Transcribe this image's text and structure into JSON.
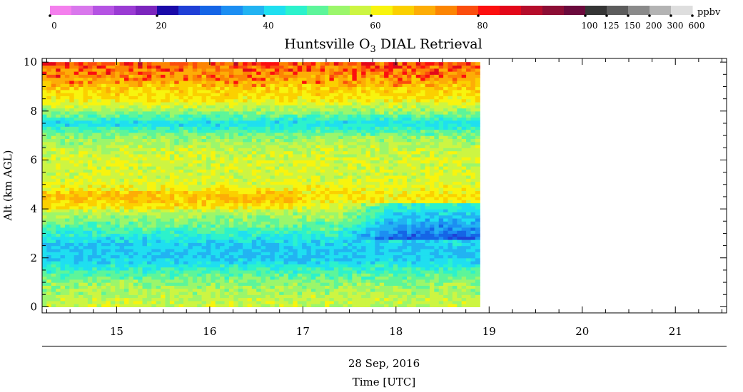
{
  "chart_data": {
    "type": "heatmap",
    "title_prefix": "Huntsville O",
    "title_sub": "3",
    "title_suffix": " DIAL Retrieval",
    "ylabel": "Alt (km AGL)",
    "date_label": "28 Sep, 2016",
    "xlabel": "Time [UTC]",
    "colorbar_unit": "ppbv",
    "colorbar_tick_labels": [
      "0",
      "20",
      "40",
      "60",
      "80",
      "100",
      "125",
      "150",
      "200",
      "300",
      "600"
    ],
    "colorbar_colors": [
      "#f47fed",
      "#d977ec",
      "#b553e3",
      "#9a3bd3",
      "#7b25bd",
      "#1a0aa8",
      "#1f3fd6",
      "#1565e6",
      "#1c8ef2",
      "#22b3f2",
      "#1fdff0",
      "#2cf2cc",
      "#5df59a",
      "#9bf66b",
      "#cdf542",
      "#f8f40e",
      "#fbd000",
      "#fdad06",
      "#fc8503",
      "#fb4d0e",
      "#fc0f0f",
      "#e3081a",
      "#b50d2b",
      "#8c0e35",
      "#6a0a3c",
      "#353535",
      "#5c5c5c",
      "#8a8a8a",
      "#b3b3b3",
      "#dedede"
    ],
    "x_ticks": [
      15,
      16,
      17,
      18,
      19,
      20,
      21
    ],
    "x_range": [
      14.2,
      21.55
    ],
    "y_ticks": [
      0,
      2,
      4,
      6,
      8,
      10
    ],
    "y_range": [
      -0.25,
      10.15
    ],
    "data_time_range": [
      14.2,
      18.9
    ],
    "data_alt_range": [
      0,
      10
    ],
    "profiles": [
      {
        "alt_km": 0.0,
        "o3_ppbv": 58
      },
      {
        "alt_km": 0.5,
        "o3_ppbv": 56
      },
      {
        "alt_km": 1.0,
        "o3_ppbv": 53
      },
      {
        "alt_km": 1.5,
        "o3_ppbv": 47
      },
      {
        "alt_km": 2.0,
        "o3_ppbv": 40
      },
      {
        "alt_km": 2.5,
        "o3_ppbv": 40
      },
      {
        "alt_km": 3.0,
        "o3_ppbv": 46
      },
      {
        "alt_km": 3.5,
        "o3_ppbv": 52
      },
      {
        "alt_km": 4.0,
        "o3_ppbv": 58
      },
      {
        "alt_km": 4.5,
        "o3_ppbv": 64
      },
      {
        "alt_km": 5.0,
        "o3_ppbv": 60
      },
      {
        "alt_km": 5.5,
        "o3_ppbv": 58
      },
      {
        "alt_km": 6.0,
        "o3_ppbv": 59
      },
      {
        "alt_km": 6.5,
        "o3_ppbv": 57
      },
      {
        "alt_km": 7.0,
        "o3_ppbv": 53
      },
      {
        "alt_km": 7.5,
        "o3_ppbv": 42
      },
      {
        "alt_km": 8.0,
        "o3_ppbv": 54
      },
      {
        "alt_km": 8.5,
        "o3_ppbv": 63
      },
      {
        "alt_km": 9.0,
        "o3_ppbv": 66
      },
      {
        "alt_km": 9.5,
        "o3_ppbv": 72
      },
      {
        "alt_km": 10.0,
        "o3_ppbv": 76
      }
    ]
  }
}
